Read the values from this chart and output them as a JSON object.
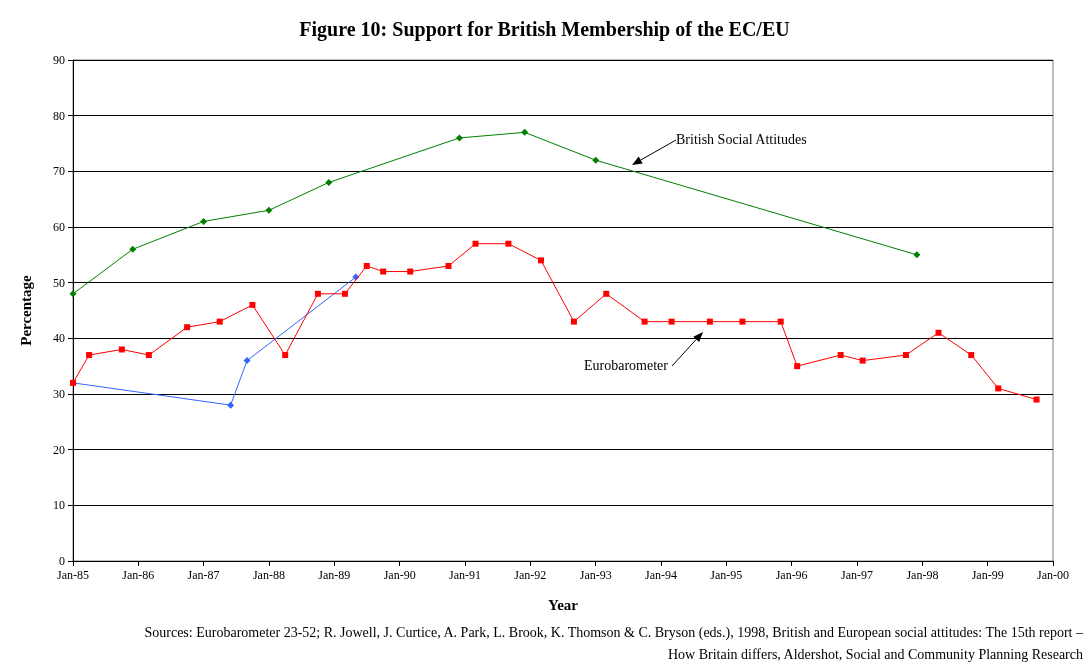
{
  "chart_data": {
    "type": "line",
    "title": "Figure 10: Support for British Membership of the EC/EU",
    "xlabel": "Year",
    "ylabel": "Percentage",
    "xlim": [
      "1985-01",
      "2000-01"
    ],
    "xticks": [
      {
        "value": "1985-01",
        "label": "Jan-85"
      },
      {
        "value": "1986-01",
        "label": "Jan-86"
      },
      {
        "value": "1987-01",
        "label": "Jan-87"
      },
      {
        "value": "1988-01",
        "label": "Jan-88"
      },
      {
        "value": "1989-01",
        "label": "Jan-89"
      },
      {
        "value": "1990-01",
        "label": "Jan-90"
      },
      {
        "value": "1991-01",
        "label": "Jan-91"
      },
      {
        "value": "1992-01",
        "label": "Jan-92"
      },
      {
        "value": "1993-01",
        "label": "Jan-93"
      },
      {
        "value": "1994-01",
        "label": "Jan-94"
      },
      {
        "value": "1995-01",
        "label": "Jan-95"
      },
      {
        "value": "1996-01",
        "label": "Jan-96"
      },
      {
        "value": "1997-01",
        "label": "Jan-97"
      },
      {
        "value": "1998-01",
        "label": "Jan-98"
      },
      {
        "value": "1999-01",
        "label": "Jan-99"
      },
      {
        "value": "2000-01",
        "label": "Jan-00"
      }
    ],
    "ylim": [
      0,
      90
    ],
    "yticks": [
      0,
      10,
      20,
      30,
      40,
      50,
      60,
      70,
      80,
      90
    ],
    "grid": "y",
    "series": [
      {
        "color": "#008000",
        "marker": "diamond",
        "x": [
          "1985-01",
          "1985-12",
          "1987-01",
          "1988-01",
          "1988-12",
          "1990-12",
          "1991-12",
          "1993-01",
          "1997-12"
        ],
        "values": [
          48,
          56,
          61,
          63,
          68,
          76,
          77,
          72,
          55
        ]
      },
      {
        "color": "#ff0000",
        "marker": "square",
        "x": [
          "1985-01",
          "1985-04",
          "1985-10",
          "1986-03",
          "1986-10",
          "1987-04",
          "1987-10",
          "1988-04",
          "1988-10",
          "1989-03",
          "1989-07",
          "1989-10",
          "1990-03",
          "1990-10",
          "1991-03",
          "1991-09",
          "1992-03",
          "1992-09",
          "1993-03",
          "1993-10",
          "1994-03",
          "1994-10",
          "1995-04",
          "1995-11",
          "1996-02",
          "1996-10",
          "1997-02",
          "1997-10",
          "1998-04",
          "1998-10",
          "1999-03",
          "1999-10"
        ],
        "values": [
          32,
          37,
          38,
          37,
          42,
          43,
          46,
          37,
          48,
          48,
          53,
          52,
          52,
          53,
          57,
          57,
          54,
          43,
          48,
          43,
          43,
          43,
          43,
          43,
          35,
          37,
          36,
          37,
          41,
          37,
          31,
          29
        ]
      },
      {
        "color": "#3366ff",
        "marker": "diamond",
        "x": [
          "1985-01",
          "1987-06",
          "1987-09",
          "1989-05"
        ],
        "values": [
          32,
          28,
          36,
          51
        ]
      }
    ],
    "annotations": [
      "British Social Attitudes",
      "Eurobarometer",
      "Sources: Eurobarometer 23-52; R. Jowell, J. Curtice, A. Park, L. Brook, K. Thomson & C. Bryson (eds.), 1998, British and European social attitudes: The 15th report – How Britain differs, Aldershot, Social and Community Planning Research"
    ]
  }
}
